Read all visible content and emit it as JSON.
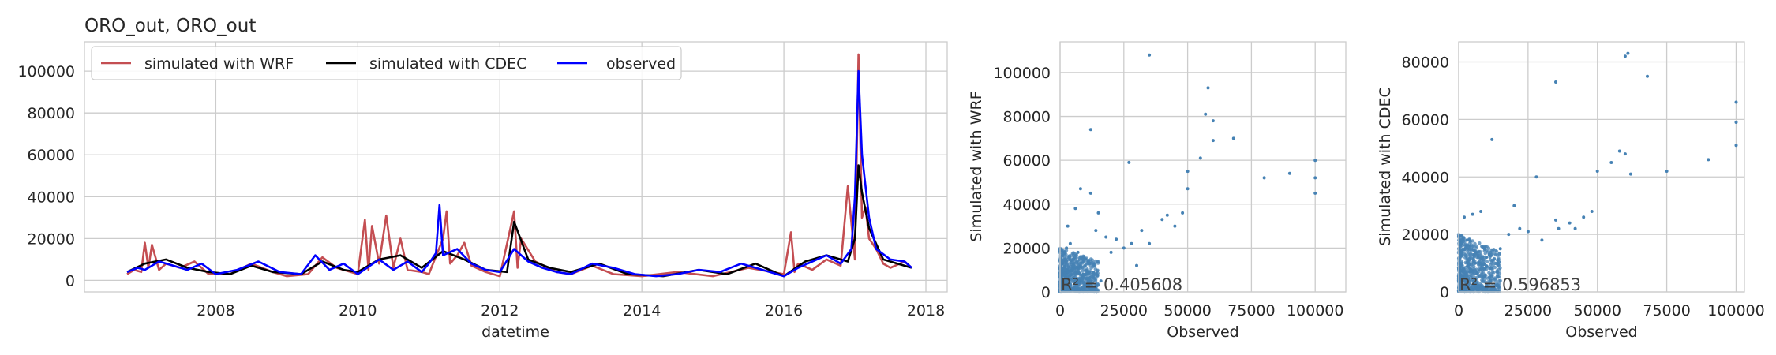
{
  "colors": {
    "wrf": "#c44e52",
    "cdec": "#000000",
    "observed": "#0000ff",
    "scatter": "#4682b4"
  },
  "chart_data": [
    {
      "type": "line",
      "title": "ORO_out, ORO_out",
      "xlabel": "datetime",
      "ylabel": "",
      "xlim": [
        2006.15,
        2018.3
      ],
      "ylim": [
        -5500,
        114000
      ],
      "xticks": [
        2008,
        2010,
        2012,
        2014,
        2016,
        2018
      ],
      "xtick_labels": [
        "2008",
        "2010",
        "2012",
        "2014",
        "2016",
        "2018"
      ],
      "yticks": [
        0,
        20000,
        40000,
        60000,
        80000,
        100000
      ],
      "ytick_labels": [
        "0",
        "20000",
        "40000",
        "60000",
        "80000",
        "100000"
      ],
      "grid": true,
      "legend": "top-left",
      "series": [
        {
          "name": "simulated with WRF",
          "color": "#c44e52",
          "x": [
            2006.75,
            2006.85,
            2006.95,
            2007.0,
            2007.05,
            2007.1,
            2007.2,
            2007.3,
            2007.5,
            2007.7,
            2007.9,
            2008.2,
            2008.5,
            2008.8,
            2009.0,
            2009.3,
            2009.5,
            2009.7,
            2009.9,
            2010.0,
            2010.1,
            2010.15,
            2010.2,
            2010.3,
            2010.4,
            2010.5,
            2010.6,
            2010.7,
            2010.9,
            2011.0,
            2011.2,
            2011.25,
            2011.3,
            2011.4,
            2011.5,
            2011.6,
            2011.8,
            2012.0,
            2012.2,
            2012.25,
            2012.3,
            2012.5,
            2012.8,
            2013.0,
            2013.3,
            2013.6,
            2014.0,
            2014.5,
            2015.0,
            2015.5,
            2016.0,
            2016.1,
            2016.15,
            2016.2,
            2016.4,
            2016.6,
            2016.8,
            2016.9,
            2017.0,
            2017.05,
            2017.1,
            2017.15,
            2017.2,
            2017.3,
            2017.4,
            2017.5,
            2017.7,
            2017.8
          ],
          "y": [
            3000,
            5000,
            4000,
            18000,
            6000,
            17000,
            5000,
            8000,
            6000,
            9000,
            3000,
            3000,
            8000,
            4000,
            2000,
            3000,
            11000,
            6000,
            4000,
            3000,
            29000,
            5000,
            26000,
            8000,
            31000,
            6000,
            20000,
            5000,
            4000,
            3000,
            20000,
            33000,
            8000,
            12000,
            18000,
            7000,
            4000,
            2000,
            33000,
            6000,
            20000,
            9000,
            4000,
            3000,
            7000,
            3000,
            2000,
            4000,
            2000,
            6000,
            3000,
            23000,
            4000,
            8000,
            5000,
            10000,
            7000,
            45000,
            10000,
            108000,
            30000,
            35000,
            20000,
            15000,
            8000,
            6000,
            9000,
            6000
          ]
        },
        {
          "name": "simulated with CDEC",
          "color": "#000000",
          "x": [
            2006.75,
            2007.0,
            2007.3,
            2007.6,
            2007.9,
            2008.2,
            2008.5,
            2008.8,
            2009.2,
            2009.5,
            2009.8,
            2010.0,
            2010.3,
            2010.6,
            2010.9,
            2011.2,
            2011.5,
            2011.8,
            2012.1,
            2012.2,
            2012.4,
            2012.7,
            2013.0,
            2013.4,
            2013.8,
            2014.3,
            2014.8,
            2015.2,
            2015.6,
            2016.0,
            2016.3,
            2016.6,
            2016.9,
            2017.0,
            2017.05,
            2017.1,
            2017.2,
            2017.4,
            2017.6,
            2017.8
          ],
          "y": [
            4000,
            8000,
            10000,
            6000,
            4000,
            3000,
            7000,
            4000,
            3000,
            9000,
            5000,
            4000,
            10000,
            12000,
            6000,
            14000,
            10000,
            5000,
            4000,
            28000,
            10000,
            6000,
            4000,
            8000,
            3000,
            2000,
            5000,
            3000,
            8000,
            2000,
            9000,
            12000,
            9000,
            20000,
            55000,
            42000,
            25000,
            10000,
            8000,
            6000
          ]
        },
        {
          "name": "observed",
          "color": "#0000ff",
          "x": [
            2006.75,
            2006.9,
            2007.0,
            2007.2,
            2007.4,
            2007.6,
            2007.8,
            2008.0,
            2008.3,
            2008.6,
            2008.9,
            2009.2,
            2009.4,
            2009.6,
            2009.8,
            2010.0,
            2010.3,
            2010.5,
            2010.7,
            2010.9,
            2011.0,
            2011.1,
            2011.15,
            2011.2,
            2011.4,
            2011.6,
            2011.8,
            2012.0,
            2012.2,
            2012.4,
            2012.6,
            2012.8,
            2013.0,
            2013.3,
            2013.6,
            2013.9,
            2014.2,
            2014.5,
            2014.8,
            2015.1,
            2015.4,
            2015.7,
            2016.0,
            2016.2,
            2016.4,
            2016.6,
            2016.8,
            2016.95,
            2017.0,
            2017.05,
            2017.1,
            2017.15,
            2017.2,
            2017.3,
            2017.5,
            2017.7,
            2017.8
          ],
          "y": [
            4000,
            6000,
            5000,
            9000,
            7000,
            5000,
            8000,
            3000,
            5000,
            9000,
            4000,
            3000,
            12000,
            5000,
            8000,
            3000,
            10000,
            5000,
            9000,
            4000,
            8000,
            13000,
            36000,
            12000,
            15000,
            8000,
            5000,
            4000,
            15000,
            9000,
            6000,
            4000,
            3000,
            8000,
            6000,
            3000,
            2000,
            3000,
            5000,
            4000,
            8000,
            5000,
            2000,
            6000,
            9000,
            12000,
            8000,
            15000,
            40000,
            100000,
            60000,
            45000,
            30000,
            15000,
            10000,
            9000,
            6000
          ]
        }
      ]
    },
    {
      "type": "scatter",
      "title": "",
      "xlabel": "Observed",
      "ylabel": "Simulated with WRF",
      "xlim": [
        0,
        112000
      ],
      "ylim": [
        0,
        114000
      ],
      "xticks": [
        0,
        25000,
        50000,
        75000,
        100000
      ],
      "xtick_labels": [
        "0",
        "25000",
        "50000",
        "75000",
        "100000"
      ],
      "yticks": [
        0,
        20000,
        40000,
        60000,
        80000,
        100000
      ],
      "ytick_labels": [
        "0",
        "20000",
        "40000",
        "60000",
        "80000",
        "100000"
      ],
      "grid": true,
      "annotation": "R² = 0.405608",
      "annotation_anchor": "bottom-left",
      "x": [
        35000,
        58000,
        12000,
        57000,
        60000,
        60000,
        100000,
        100000,
        100000,
        55000,
        68000,
        50000,
        50000,
        90000,
        80000,
        27000,
        8000,
        12000,
        15000,
        18000,
        25000,
        28000,
        32000,
        40000,
        45000,
        6000,
        2000,
        5000,
        10000,
        20000,
        30000,
        35000,
        42000,
        48000,
        22000,
        14000,
        3000,
        4000,
        7000,
        9000,
        11000,
        13000,
        16000,
        1000,
        2500,
        6500,
        8500
      ],
      "y": [
        108000,
        93000,
        74000,
        81000,
        78000,
        69000,
        60000,
        52000,
        45000,
        61000,
        70000,
        55000,
        47000,
        54000,
        52000,
        59000,
        47000,
        45000,
        36000,
        25000,
        20000,
        22000,
        28000,
        33000,
        30000,
        38000,
        10000,
        12000,
        15000,
        18000,
        12000,
        22000,
        35000,
        36000,
        24000,
        28000,
        30000,
        22000,
        18000,
        8000,
        6000,
        9000,
        5000,
        14000,
        20000,
        5000,
        15000
      ],
      "dense_region": {
        "x": [
          0,
          15000
        ],
        "y": [
          0,
          20000
        ]
      }
    },
    {
      "type": "scatter",
      "title": "",
      "xlabel": "Observed",
      "ylabel": "Simulated with CDEC",
      "xlim": [
        0,
        103000
      ],
      "ylim": [
        0,
        87000
      ],
      "xticks": [
        0,
        25000,
        50000,
        75000,
        100000
      ],
      "xtick_labels": [
        "0",
        "25000",
        "50000",
        "75000",
        "100000"
      ],
      "yticks": [
        0,
        20000,
        40000,
        60000,
        80000
      ],
      "ytick_labels": [
        "0",
        "20000",
        "40000",
        "60000",
        "80000"
      ],
      "grid": true,
      "annotation": "R² = 0.596853",
      "annotation_anchor": "bottom-left",
      "x": [
        60000,
        61000,
        35000,
        68000,
        100000,
        100000,
        100000,
        50000,
        55000,
        58000,
        60000,
        62000,
        75000,
        90000,
        12000,
        28000,
        36000,
        40000,
        45000,
        48000,
        20000,
        25000,
        30000,
        35000,
        42000,
        8000,
        10000,
        15000,
        18000,
        22000,
        3000,
        5000,
        6000,
        2000,
        4000,
        9000,
        11000,
        14000
      ],
      "y": [
        82000,
        83000,
        73000,
        75000,
        66000,
        59000,
        51000,
        42000,
        45000,
        49000,
        48000,
        41000,
        42000,
        46000,
        53000,
        40000,
        22000,
        24000,
        26000,
        28000,
        30000,
        21000,
        18000,
        25000,
        22000,
        28000,
        12000,
        15000,
        20000,
        22000,
        18000,
        27000,
        10000,
        26000,
        16000,
        8000,
        13000,
        11000
      ],
      "dense_region": {
        "x": [
          0,
          15000
        ],
        "y": [
          0,
          20000
        ]
      }
    }
  ]
}
